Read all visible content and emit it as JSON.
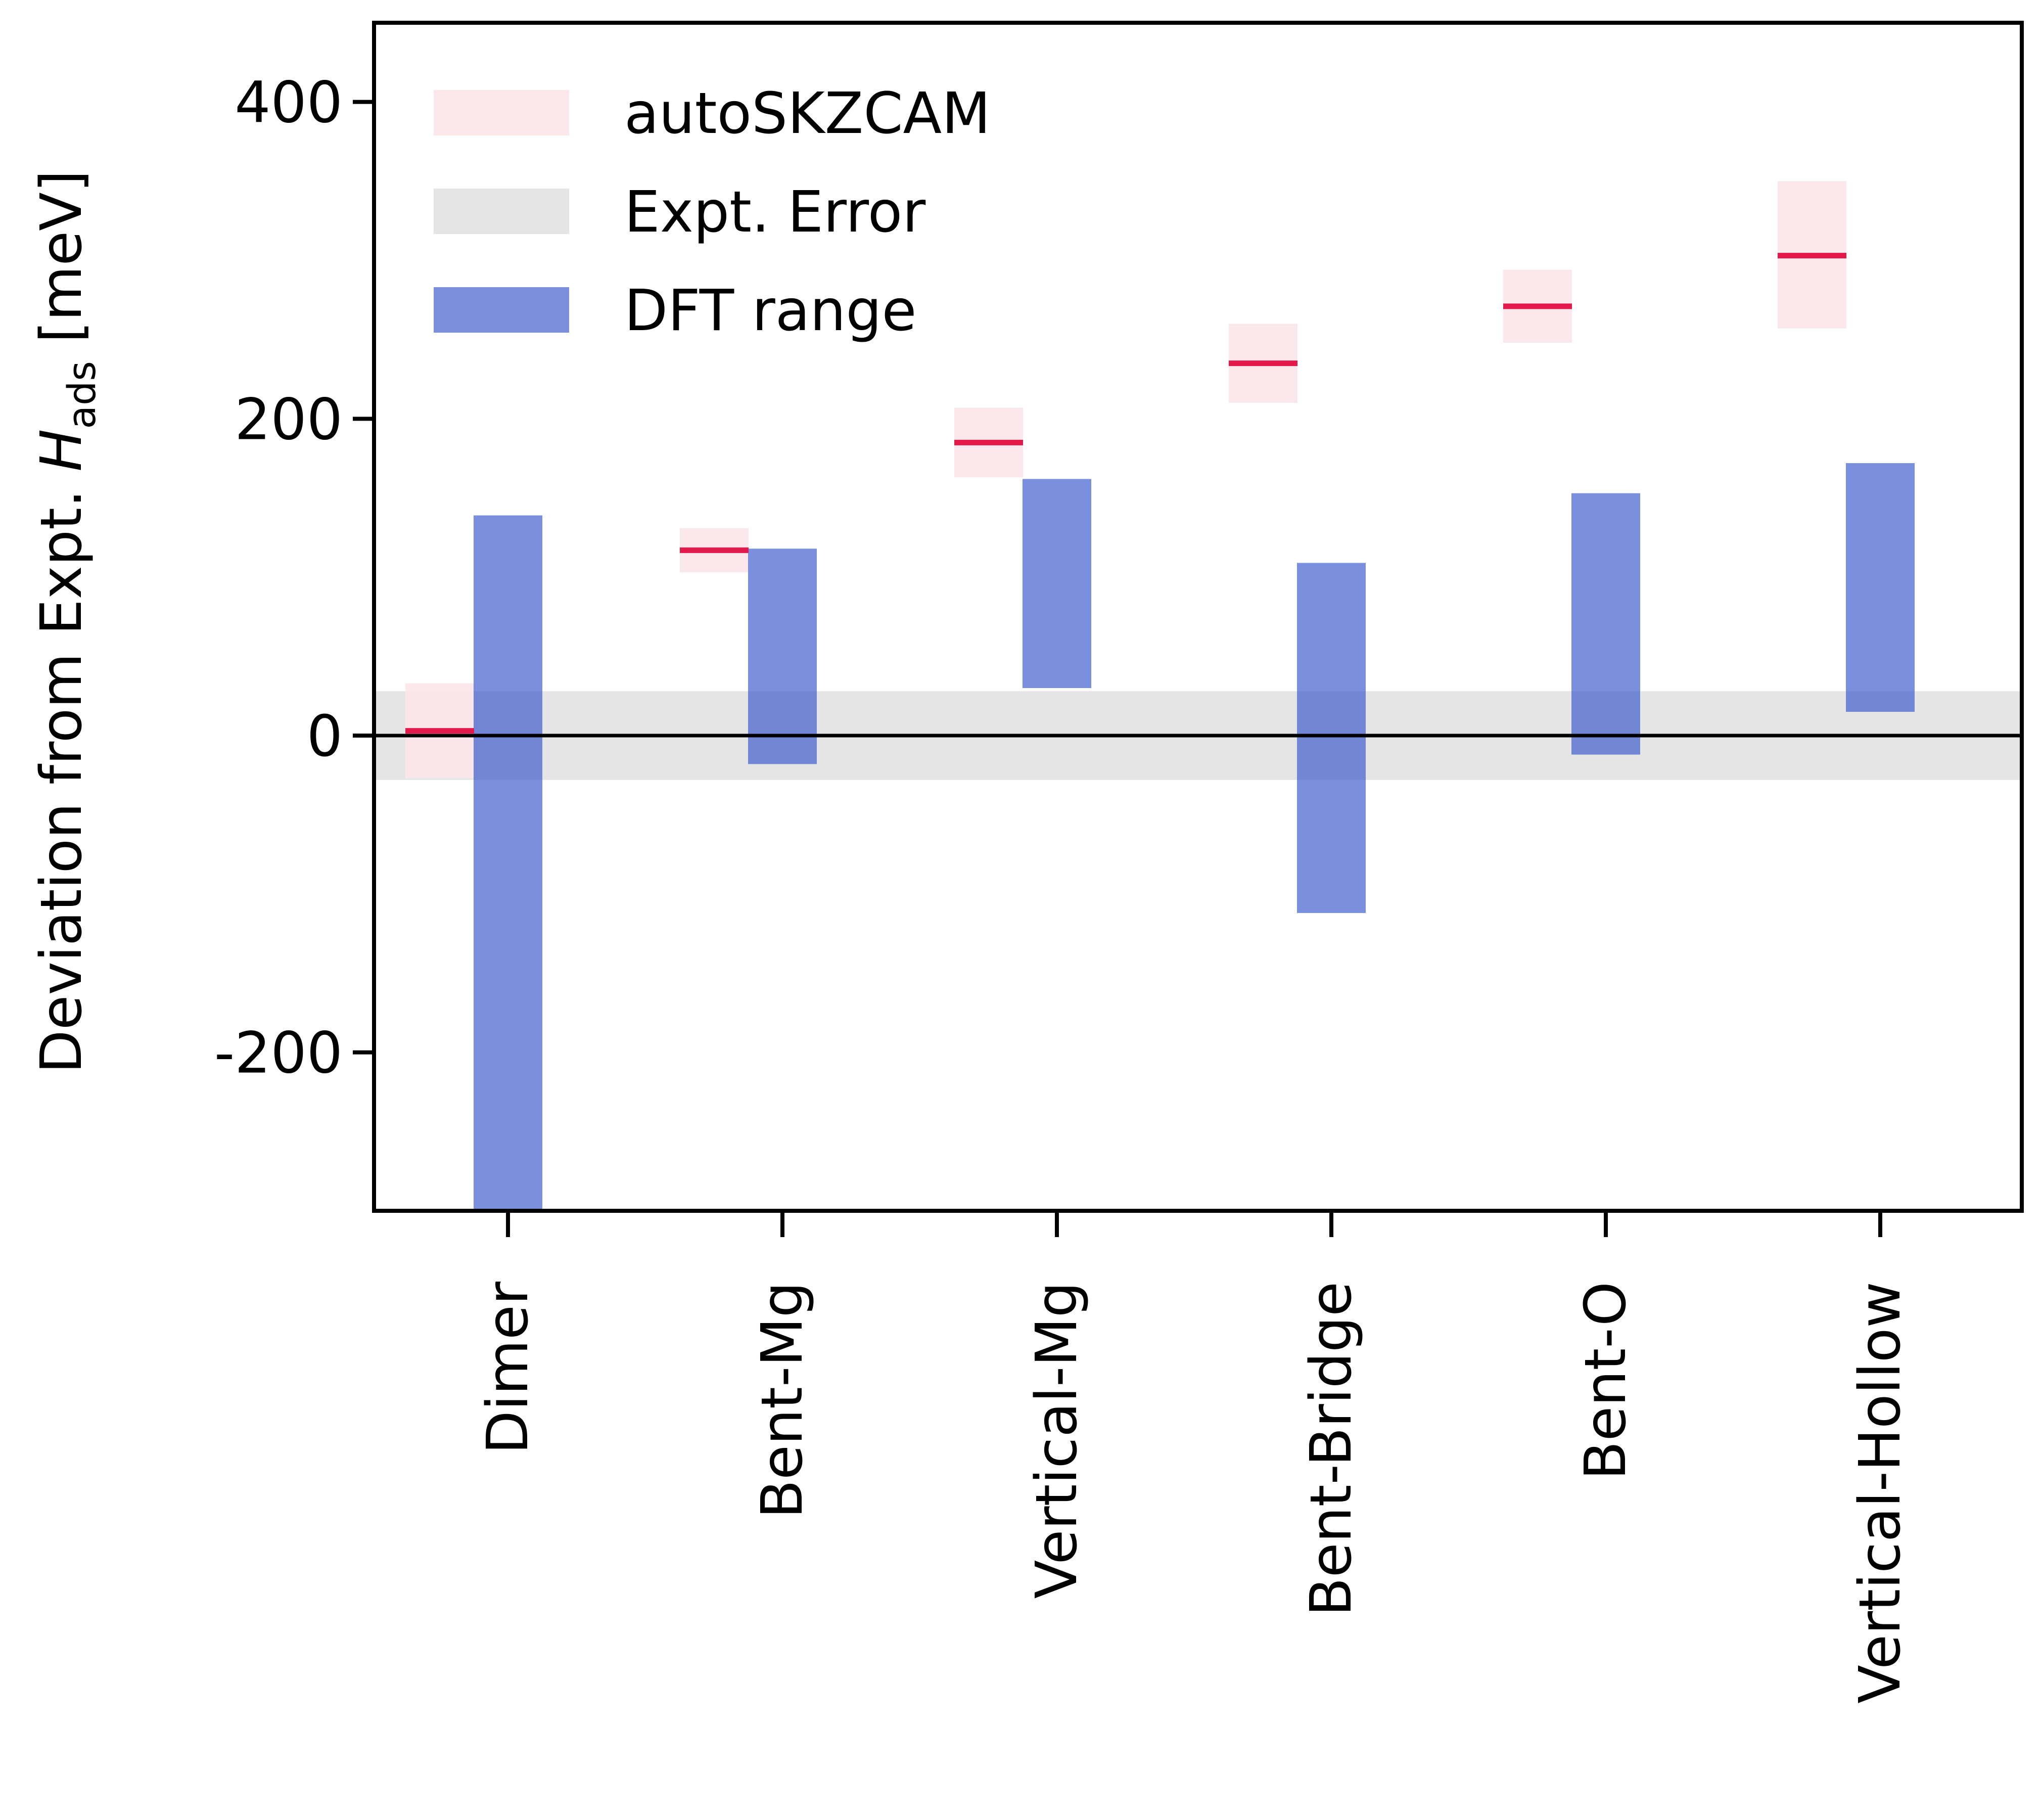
{
  "chart_data": {
    "type": "bar",
    "categories": [
      "Dimer",
      "Bent-Mg",
      "Vertical-Mg",
      "Bent-Bridge",
      "Bent-O",
      "Vertical-Hollow"
    ],
    "ylabel_prefix": "Deviation from Expt. ",
    "ylabel_var": "H",
    "ylabel_sub": "ads",
    "ylabel_suffix": " [meV]",
    "ylim": [
      -300,
      450
    ],
    "yticks": [
      -200,
      0,
      200,
      400
    ],
    "ytick_labels": [
      "-200",
      "0",
      "200",
      "400"
    ],
    "expt_error": [
      -28,
      28
    ],
    "series": [
      {
        "name": "autoSKZCAM",
        "color": "#e4194b",
        "band_color": "#fbe6ea",
        "values": [
          3,
          117,
          185,
          235,
          271,
          303
        ],
        "low": [
          -27,
          103,
          163,
          210,
          248,
          257
        ],
        "high": [
          33,
          131,
          207,
          260,
          294,
          350
        ]
      },
      {
        "name": "DFT range",
        "color": "#7b93e0",
        "low": [
          -300,
          -18,
          30,
          -112,
          -12,
          15
        ],
        "high": [
          139,
          118,
          162,
          109,
          153,
          172
        ]
      }
    ],
    "legend": {
      "position": "top-left",
      "entries": [
        "autoSKZCAM",
        "Expt. Error",
        "DFT range"
      ],
      "colors": [
        "#fbe6ea",
        "#e5e5e5",
        "#7b93e0"
      ]
    },
    "grid": false
  }
}
